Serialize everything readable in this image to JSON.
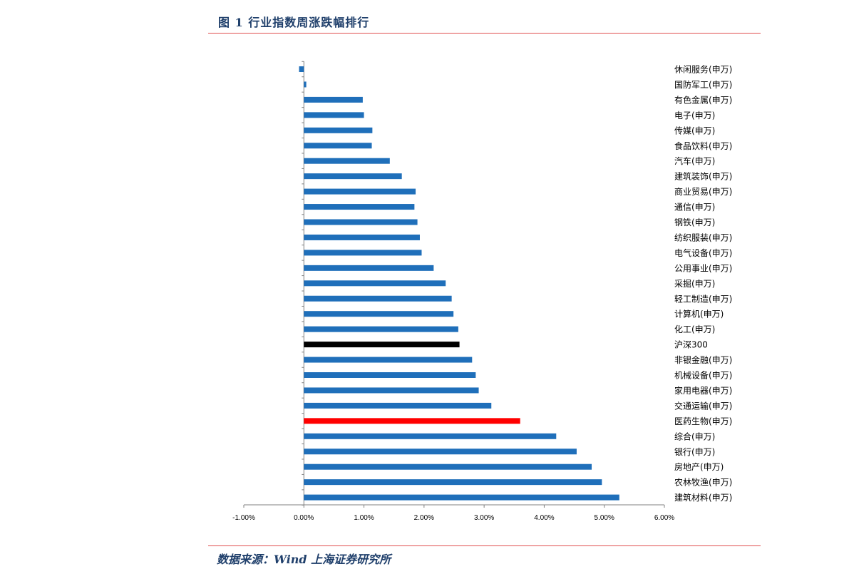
{
  "header": {
    "title": "图 1 行业指数周涨跌幅排行"
  },
  "footer": {
    "source": "数据来源：Wind  上海证券研究所"
  },
  "colors": {
    "default": "#1f6fba",
    "hs300": "#000000",
    "highlight": "#ff0000",
    "rule": "#e05050"
  },
  "chart_data": {
    "type": "bar",
    "orientation": "horizontal",
    "xlim": [
      -1.0,
      6.0
    ],
    "xticks": [
      -1.0,
      0.0,
      1.0,
      2.0,
      3.0,
      4.0,
      5.0,
      6.0
    ],
    "xtick_labels": [
      "-1.00%",
      "0.00%",
      "1.00%",
      "2.00%",
      "3.00%",
      "4.00%",
      "5.00%",
      "6.00%"
    ],
    "title": "",
    "xlabel": "",
    "ylabel": "",
    "grid": false,
    "categories": [
      "休闲服务(申万)",
      "国防军工(申万)",
      "有色金属(申万)",
      "电子(申万)",
      "传媒(申万)",
      "食品饮料(申万)",
      "汽车(申万)",
      "建筑装饰(申万)",
      "商业贸易(申万)",
      "通信(申万)",
      "钢铁(申万)",
      "纺织服装(申万)",
      "电气设备(申万)",
      "公用事业(申万)",
      "采掘(申万)",
      "轻工制造(申万)",
      "计算机(申万)",
      "化工(申万)",
      "沪深300",
      "非银金融(申万)",
      "机械设备(申万)",
      "家用电器(申万)",
      "交通运输(申万)",
      "医药生物(申万)",
      "综合(申万)",
      "银行(申万)",
      "房地产(申万)",
      "农林牧渔(申万)",
      "建筑材料(申万)"
    ],
    "values": [
      -0.08,
      0.04,
      0.98,
      1.0,
      1.14,
      1.13,
      1.43,
      1.63,
      1.86,
      1.84,
      1.89,
      1.93,
      1.96,
      2.16,
      2.36,
      2.46,
      2.49,
      2.57,
      2.59,
      2.8,
      2.86,
      2.91,
      3.12,
      3.6,
      4.2,
      4.54,
      4.79,
      4.96,
      5.25
    ],
    "bar_colors": [
      "default",
      "default",
      "default",
      "default",
      "default",
      "default",
      "default",
      "default",
      "default",
      "default",
      "default",
      "default",
      "default",
      "default",
      "default",
      "default",
      "default",
      "default",
      "hs300",
      "default",
      "default",
      "default",
      "default",
      "highlight",
      "default",
      "default",
      "default",
      "default",
      "default"
    ]
  }
}
